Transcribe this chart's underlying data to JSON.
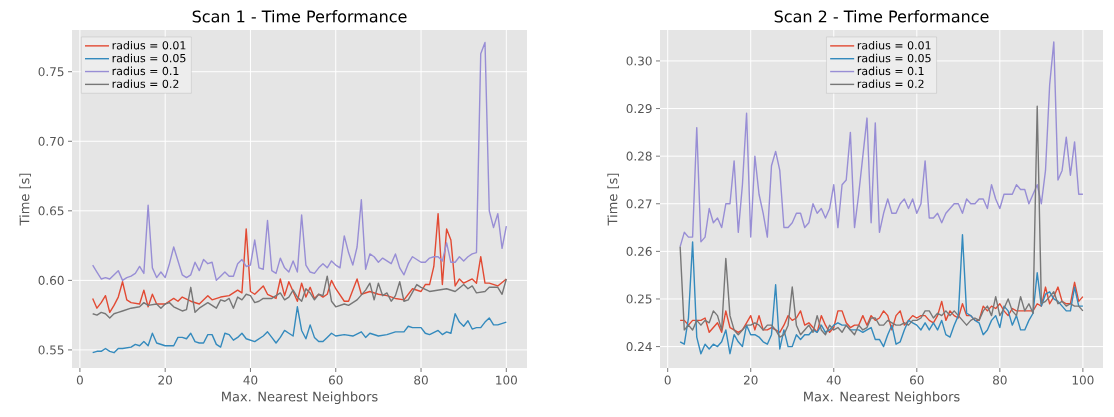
{
  "chart_data": [
    {
      "type": "line",
      "title": "Scan 1 - Time Performance",
      "xlabel": "Max. Nearest Neighbors",
      "ylabel": "Time [s]",
      "x": [
        3,
        4,
        5,
        6,
        7,
        8,
        9,
        10,
        11,
        12,
        13,
        14,
        15,
        16,
        17,
        18,
        19,
        20,
        21,
        22,
        23,
        24,
        25,
        26,
        27,
        28,
        29,
        30,
        31,
        32,
        33,
        34,
        35,
        36,
        37,
        38,
        39,
        40,
        41,
        42,
        43,
        44,
        45,
        46,
        47,
        48,
        49,
        50,
        51,
        52,
        53,
        54,
        55,
        56,
        57,
        58,
        59,
        60,
        61,
        62,
        63,
        64,
        65,
        66,
        67,
        68,
        69,
        70,
        71,
        72,
        73,
        74,
        75,
        76,
        77,
        78,
        79,
        80,
        81,
        82,
        83,
        84,
        85,
        86,
        87,
        88,
        89,
        90,
        91,
        92,
        93,
        94,
        95,
        96,
        97,
        98,
        99,
        100
      ],
      "xlim": [
        -1.85,
        104.85
      ],
      "ylim": [
        0.537,
        0.78
      ],
      "xticks": [
        0,
        20,
        40,
        60,
        80,
        100
      ],
      "yticks": [
        0.55,
        {
          "value": 0.6,
          "label": "0.60"
        },
        0.65,
        {
          "value": 0.7,
          "label": "0.70"
        },
        0.75
      ],
      "grid": true,
      "legend": "top left",
      "series": [
        {
          "name": "radius = 0.01",
          "color": "#e24a33",
          "x": [
            3,
            4,
            5,
            6,
            7,
            8,
            9,
            10,
            11,
            12,
            14,
            15,
            16,
            17,
            18,
            20,
            22,
            23,
            24,
            26,
            28,
            30,
            31,
            33,
            35,
            37,
            38,
            39,
            40,
            41,
            43,
            44,
            46,
            47,
            48,
            49,
            50,
            51,
            52,
            53,
            54,
            55,
            56,
            57,
            58,
            59,
            60,
            62,
            63,
            65,
            66,
            68,
            70,
            72,
            74,
            76,
            78,
            80,
            81,
            82,
            83,
            84,
            85,
            86,
            87,
            88,
            89,
            90,
            92,
            93,
            94,
            95,
            96,
            98,
            100
          ],
          "values": [
            0.587,
            0.58,
            0.584,
            0.589,
            0.577,
            0.582,
            0.588,
            0.599,
            0.586,
            0.584,
            0.583,
            0.593,
            0.581,
            0.59,
            0.583,
            0.583,
            0.587,
            0.585,
            0.588,
            0.585,
            0.583,
            0.589,
            0.586,
            0.588,
            0.589,
            0.593,
            0.591,
            0.637,
            0.592,
            0.59,
            0.596,
            0.59,
            0.587,
            0.601,
            0.589,
            0.599,
            0.592,
            0.585,
            0.598,
            0.588,
            0.595,
            0.587,
            0.59,
            0.588,
            0.59,
            0.6,
            0.594,
            0.585,
            0.585,
            0.601,
            0.59,
            0.592,
            0.59,
            0.589,
            0.587,
            0.586,
            0.594,
            0.592,
            0.597,
            0.597,
            0.61,
            0.648,
            0.597,
            0.637,
            0.629,
            0.596,
            0.601,
            0.598,
            0.601,
            0.598,
            0.617,
            0.598,
            0.598,
            0.596,
            0.601
          ]
        },
        {
          "name": "radius = 0.05",
          "color": "#348abd",
          "x": [
            3,
            4,
            5,
            6,
            7,
            8,
            9,
            10,
            12,
            13,
            14,
            15,
            16,
            17,
            18,
            20,
            22,
            23,
            24,
            25,
            26,
            27,
            28,
            29,
            30,
            31,
            32,
            33,
            34,
            35,
            36,
            37,
            38,
            39,
            41,
            43,
            44,
            45,
            46,
            47,
            48,
            49,
            50,
            51,
            52,
            53,
            54,
            55,
            56,
            57,
            58,
            59,
            60,
            62,
            64,
            66,
            67,
            68,
            70,
            72,
            74,
            76,
            77,
            78,
            80,
            81,
            82,
            84,
            85,
            86,
            87,
            88,
            89,
            90,
            91,
            92,
            93,
            94,
            95,
            96,
            97,
            98,
            100
          ],
          "values": [
            0.548,
            0.549,
            0.549,
            0.551,
            0.549,
            0.548,
            0.551,
            0.551,
            0.552,
            0.554,
            0.553,
            0.556,
            0.553,
            0.562,
            0.555,
            0.553,
            0.553,
            0.559,
            0.559,
            0.558,
            0.562,
            0.556,
            0.555,
            0.555,
            0.561,
            0.561,
            0.554,
            0.552,
            0.562,
            0.561,
            0.557,
            0.559,
            0.562,
            0.558,
            0.556,
            0.56,
            0.563,
            0.559,
            0.555,
            0.559,
            0.564,
            0.562,
            0.56,
            0.581,
            0.564,
            0.558,
            0.568,
            0.559,
            0.556,
            0.556,
            0.559,
            0.562,
            0.56,
            0.561,
            0.56,
            0.563,
            0.559,
            0.562,
            0.56,
            0.561,
            0.563,
            0.563,
            0.567,
            0.566,
            0.566,
            0.562,
            0.561,
            0.564,
            0.561,
            0.563,
            0.562,
            0.576,
            0.57,
            0.567,
            0.571,
            0.565,
            0.566,
            0.566,
            0.57,
            0.573,
            0.568,
            0.568,
            0.57
          ]
        },
        {
          "name": "radius = 0.1",
          "color": "#988ed5",
          "values": [
            0.611,
            0.606,
            0.601,
            0.602,
            0.601,
            0.604,
            0.607,
            0.6,
            0.602,
            0.603,
            0.605,
            0.61,
            0.605,
            0.654,
            0.609,
            0.602,
            0.606,
            0.602,
            0.612,
            0.624,
            0.614,
            0.604,
            0.602,
            0.604,
            0.613,
            0.607,
            0.615,
            0.612,
            0.613,
            0.6,
            0.603,
            0.606,
            0.603,
            0.603,
            0.612,
            0.615,
            0.61,
            0.611,
            0.629,
            0.609,
            0.608,
            0.643,
            0.607,
            0.605,
            0.616,
            0.609,
            0.606,
            0.614,
            0.606,
            0.647,
            0.611,
            0.606,
            0.605,
            0.609,
            0.612,
            0.609,
            0.614,
            0.611,
            0.609,
            0.632,
            0.62,
            0.611,
            0.624,
            0.658,
            0.608,
            0.619,
            0.617,
            0.613,
            0.616,
            0.614,
            0.612,
            0.619,
            0.609,
            0.604,
            0.612,
            0.617,
            0.615,
            0.613,
            0.613,
            0.616,
            0.617,
            0.617,
            0.614,
            0.627,
            0.613,
            0.613,
            0.617,
            0.614,
            0.617,
            0.619,
            0.62,
            0.763,
            0.771,
            0.65,
            0.638,
            0.648,
            0.623,
            0.639
          ]
        },
        {
          "name": "radius = 0.2",
          "color": "#777777",
          "x": [
            3,
            4,
            5,
            6,
            7,
            8,
            9,
            10,
            12,
            14,
            15,
            16,
            18,
            19,
            20,
            21,
            22,
            24,
            25,
            26,
            27,
            28,
            30,
            32,
            33,
            34,
            35,
            36,
            37,
            38,
            39,
            40,
            41,
            42,
            43,
            45,
            47,
            48,
            49,
            50,
            51,
            52,
            53,
            54,
            55,
            56,
            57,
            58,
            59,
            60,
            62,
            63,
            65,
            67,
            68,
            69,
            70,
            71,
            72,
            73,
            74,
            75,
            76,
            77,
            79,
            80,
            82,
            84,
            86,
            88,
            90,
            91,
            92,
            93,
            95,
            96,
            98,
            99,
            100
          ],
          "values": [
            0.576,
            0.575,
            0.577,
            0.576,
            0.573,
            0.576,
            0.577,
            0.578,
            0.58,
            0.581,
            0.584,
            0.582,
            0.583,
            0.58,
            0.583,
            0.584,
            0.581,
            0.578,
            0.579,
            0.595,
            0.577,
            0.58,
            0.584,
            0.58,
            0.586,
            0.585,
            0.587,
            0.58,
            0.588,
            0.586,
            0.59,
            0.589,
            0.584,
            0.585,
            0.587,
            0.587,
            0.591,
            0.586,
            0.588,
            0.593,
            0.588,
            0.585,
            0.594,
            0.591,
            0.586,
            0.59,
            0.589,
            0.603,
            0.585,
            0.581,
            0.583,
            0.582,
            0.586,
            0.593,
            0.598,
            0.586,
            0.598,
            0.589,
            0.591,
            0.585,
            0.589,
            0.599,
            0.585,
            0.586,
            0.597,
            0.595,
            0.592,
            0.593,
            0.594,
            0.592,
            0.597,
            0.594,
            0.596,
            0.591,
            0.592,
            0.595,
            0.595,
            0.59,
            0.601
          ]
        }
      ]
    },
    {
      "type": "line",
      "title": "Scan 2 - Time Performance",
      "xlabel": "Max. Nearest Neighbors",
      "ylabel": "Time [s]",
      "x": [
        3,
        4,
        5,
        6,
        7,
        8,
        9,
        10,
        11,
        12,
        13,
        14,
        15,
        16,
        17,
        18,
        19,
        20,
        21,
        22,
        23,
        24,
        25,
        26,
        27,
        28,
        29,
        30,
        31,
        32,
        33,
        34,
        35,
        36,
        37,
        38,
        39,
        40,
        41,
        42,
        43,
        44,
        45,
        46,
        47,
        48,
        49,
        50,
        51,
        52,
        53,
        54,
        55,
        56,
        57,
        58,
        59,
        60,
        61,
        62,
        63,
        64,
        65,
        66,
        67,
        68,
        69,
        70,
        71,
        72,
        73,
        74,
        75,
        76,
        77,
        78,
        79,
        80,
        81,
        82,
        83,
        84,
        85,
        86,
        87,
        88,
        89,
        90,
        91,
        92,
        93,
        94,
        95,
        96,
        97,
        98,
        99,
        100
      ],
      "xlim": [
        -1.85,
        104.85
      ],
      "ylim": [
        0.2355,
        0.3065
      ],
      "xticks": [
        0,
        20,
        40,
        60,
        80,
        100
      ],
      "yticks": [
        0.24,
        0.25,
        0.26,
        0.27,
        0.28,
        0.29,
        {
          "value": 0.3,
          "label": "0.30"
        }
      ],
      "grid": true,
      "legend": "top",
      "series": [
        {
          "name": "radius = 0.01",
          "color": "#e24a33",
          "values": [
            0.2455,
            0.2455,
            0.2445,
            0.2455,
            0.2455,
            0.2455,
            0.246,
            0.243,
            0.244,
            0.245,
            0.243,
            0.2475,
            0.244,
            0.2435,
            0.243,
            0.2435,
            0.245,
            0.2465,
            0.2435,
            0.2465,
            0.2435,
            0.2435,
            0.244,
            0.2435,
            0.243,
            0.2445,
            0.2465,
            0.2455,
            0.246,
            0.2475,
            0.2445,
            0.245,
            0.244,
            0.243,
            0.2465,
            0.2445,
            0.243,
            0.244,
            0.2475,
            0.2475,
            0.245,
            0.244,
            0.2445,
            0.2445,
            0.2465,
            0.2445,
            0.2465,
            0.2455,
            0.246,
            0.2475,
            0.2465,
            0.2435,
            0.2465,
            0.2475,
            0.2445,
            0.2455,
            0.2465,
            0.246,
            0.2465,
            0.2465,
            0.2455,
            0.245,
            0.2465,
            0.2495,
            0.2455,
            0.2475,
            0.2465,
            0.246,
            0.249,
            0.2465,
            0.2465,
            0.2455,
            0.2455,
            0.2485,
            0.2475,
            0.2485,
            0.248,
            0.249,
            0.2475,
            0.2465,
            0.248,
            0.2475,
            0.2475,
            0.2475,
            0.2475,
            0.2475,
            0.249,
            0.2485,
            0.2525,
            0.249,
            0.2505,
            0.2525,
            0.2495,
            0.249,
            0.249,
            0.2535,
            0.2495,
            0.2505
          ]
        },
        {
          "name": "radius = 0.05",
          "color": "#348abd",
          "values": [
            0.241,
            0.2405,
            0.246,
            0.262,
            0.242,
            0.2385,
            0.2405,
            0.2395,
            0.2405,
            0.24,
            0.241,
            0.2435,
            0.2385,
            0.2425,
            0.241,
            0.24,
            0.2445,
            0.2425,
            0.2425,
            0.242,
            0.241,
            0.2405,
            0.2425,
            0.253,
            0.2395,
            0.2435,
            0.24,
            0.24,
            0.2425,
            0.2415,
            0.2425,
            0.2425,
            0.2435,
            0.243,
            0.2445,
            0.243,
            0.2435,
            0.2445,
            0.245,
            0.2445,
            0.2445,
            0.2435,
            0.2435,
            0.2435,
            0.243,
            0.2435,
            0.244,
            0.2415,
            0.2415,
            0.24,
            0.2425,
            0.2445,
            0.2405,
            0.241,
            0.2435,
            0.2455,
            0.245,
            0.2445,
            0.2435,
            0.245,
            0.2435,
            0.245,
            0.2435,
            0.2455,
            0.2425,
            0.242,
            0.2445,
            0.2465,
            0.2635,
            0.247,
            0.2465,
            0.2455,
            0.245,
            0.2425,
            0.2435,
            0.2455,
            0.2465,
            0.244,
            0.2485,
            0.2475,
            0.2445,
            0.2465,
            0.2435,
            0.2435,
            0.2455,
            0.247,
            0.2555,
            0.2485,
            0.251,
            0.2515,
            0.25,
            0.2495,
            0.2485,
            0.2475,
            0.2475,
            0.2525,
            0.2485,
            0.2485
          ]
        },
        {
          "name": "radius = 0.1",
          "color": "#988ed5",
          "values": [
            0.261,
            0.264,
            0.263,
            0.263,
            0.286,
            0.262,
            0.263,
            0.269,
            0.266,
            0.267,
            0.265,
            0.27,
            0.27,
            0.279,
            0.264,
            0.274,
            0.289,
            0.263,
            0.28,
            0.272,
            0.268,
            0.263,
            0.278,
            0.281,
            0.277,
            0.265,
            0.265,
            0.266,
            0.268,
            0.268,
            0.265,
            0.266,
            0.27,
            0.268,
            0.269,
            0.267,
            0.269,
            0.274,
            0.265,
            0.274,
            0.275,
            0.285,
            0.265,
            0.272,
            0.28,
            0.288,
            0.266,
            0.287,
            0.264,
            0.268,
            0.271,
            0.268,
            0.268,
            0.27,
            0.271,
            0.269,
            0.271,
            0.268,
            0.27,
            0.279,
            0.267,
            0.267,
            0.268,
            0.266,
            0.268,
            0.269,
            0.27,
            0.27,
            0.268,
            0.271,
            0.27,
            0.27,
            0.271,
            0.271,
            0.269,
            0.274,
            0.271,
            0.269,
            0.272,
            0.272,
            0.272,
            0.274,
            0.273,
            0.273,
            0.27,
            0.272,
            0.274,
            0.27,
            0.277,
            0.295,
            0.304,
            0.275,
            0.277,
            0.284,
            0.276,
            0.283,
            0.272,
            0.272
          ]
        },
        {
          "name": "radius = 0.2",
          "color": "#777777",
          "values": [
            0.261,
            0.2435,
            0.2445,
            0.2435,
            0.2455,
            0.2445,
            0.2455,
            0.245,
            0.2475,
            0.2465,
            0.2435,
            0.2585,
            0.2465,
            0.2435,
            0.2425,
            0.2435,
            0.2445,
            0.2445,
            0.245,
            0.2445,
            0.2435,
            0.2445,
            0.2445,
            0.2435,
            0.242,
            0.2425,
            0.2445,
            0.2525,
            0.2445,
            0.2425,
            0.2435,
            0.2445,
            0.243,
            0.2465,
            0.2435,
            0.2425,
            0.2445,
            0.2435,
            0.244,
            0.243,
            0.2445,
            0.2435,
            0.2425,
            0.2445,
            0.2435,
            0.244,
            0.246,
            0.246,
            0.2445,
            0.2445,
            0.2455,
            0.245,
            0.2445,
            0.2445,
            0.245,
            0.2445,
            0.2455,
            0.2455,
            0.246,
            0.2475,
            0.2475,
            0.246,
            0.247,
            0.2465,
            0.2475,
            0.2465,
            0.2475,
            0.2465,
            0.2455,
            0.2445,
            0.2455,
            0.246,
            0.2455,
            0.2475,
            0.2485,
            0.2465,
            0.2505,
            0.2465,
            0.248,
            0.25,
            0.2475,
            0.2465,
            0.2505,
            0.2475,
            0.249,
            0.247,
            0.2905,
            0.249,
            0.2495,
            0.2505,
            0.2515,
            0.249,
            0.2495,
            0.2485,
            0.249,
            0.2485,
            0.2485,
            0.2475
          ]
        }
      ]
    }
  ]
}
